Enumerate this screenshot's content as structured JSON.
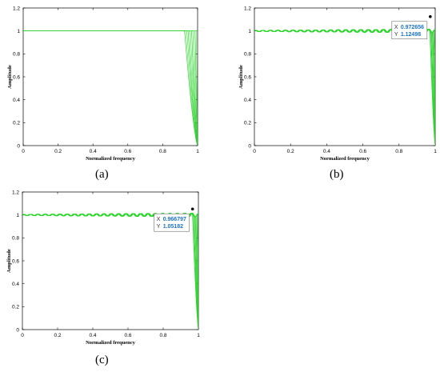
{
  "colors": {
    "curve": "#33e033",
    "curve_dark": "#11b811",
    "axis": "#000000",
    "datatip_value": "#1a73c8"
  },
  "chart_data": [
    {
      "type": "line",
      "panel_label": "(a)",
      "xlabel": "Normalized frequency",
      "ylabel": "Amplitude",
      "xlim": [
        0,
        1
      ],
      "ylim": [
        0,
        1.2
      ],
      "xticks": [
        "0",
        "0.2",
        "0.4",
        "0.6",
        "0.8",
        "1"
      ],
      "yticks": [
        "0",
        "0.2",
        "0.4",
        "0.6",
        "0.8",
        "1",
        "1.2"
      ],
      "ripple": 0,
      "cutoff_start": 0.9,
      "series_count": 12,
      "passband_level": 1
    },
    {
      "type": "line",
      "panel_label": "(b)",
      "xlabel": "Normalized frequency",
      "ylabel": "Amplitude",
      "xlim": [
        0,
        1
      ],
      "ylim": [
        0,
        1.2
      ],
      "xticks": [
        "0",
        "0.2",
        "0.4",
        "0.6",
        "0.8",
        "1"
      ],
      "yticks": [
        "0",
        "0.2",
        "0.4",
        "0.6",
        "0.8",
        "1",
        "1.2"
      ],
      "ripple": 0.012,
      "cutoff_start": 0.96,
      "series_count": 12,
      "passband_level": 1,
      "datatip": {
        "x_label": "X",
        "x": "0.972656",
        "y_label": "Y",
        "y": "1.12498",
        "x_value": 0.972656,
        "y_value": 1.12498
      }
    },
    {
      "type": "line",
      "panel_label": "(c)",
      "xlabel": "Normalized frequency",
      "ylabel": "Amplitude",
      "xlim": [
        0,
        1
      ],
      "ylim": [
        0,
        1.2
      ],
      "xticks": [
        "0",
        "0.2",
        "0.4",
        "0.6",
        "0.8",
        "1"
      ],
      "yticks": [
        "0",
        "0.2",
        "0.4",
        "0.6",
        "0.8",
        "1",
        "1.2"
      ],
      "ripple": 0.012,
      "cutoff_start": 0.955,
      "series_count": 12,
      "passband_level": 1,
      "datatip": {
        "x_label": "X",
        "x": "0.966797",
        "y_label": "Y",
        "y": "1.05182",
        "x_value": 0.966797,
        "y_value": 1.05182
      }
    }
  ]
}
